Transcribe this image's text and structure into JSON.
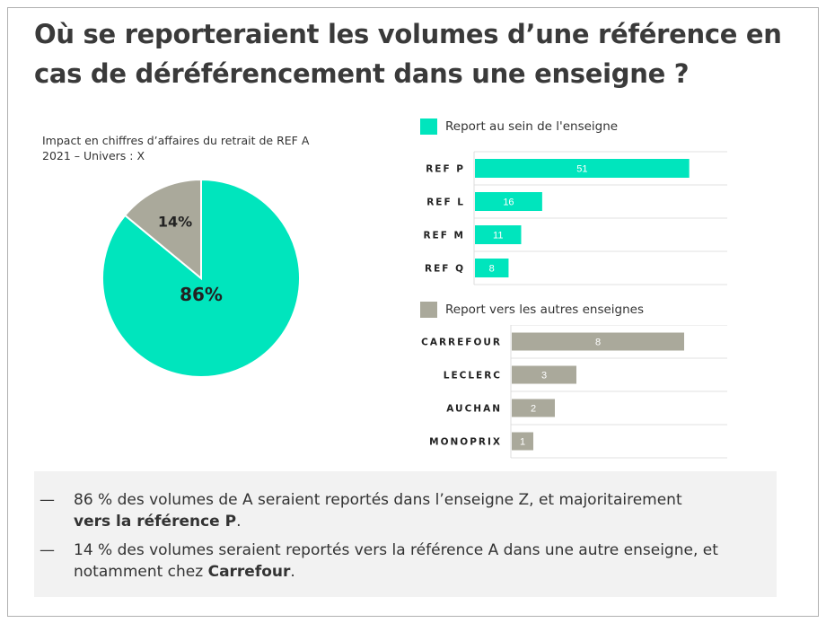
{
  "title": "Où se reporteraient les volumes d’une référence en cas de déréférencement dans une enseigne ?",
  "colors": {
    "teal": "#00e5bd",
    "grey": "#aaa99b"
  },
  "chart_data": [
    {
      "type": "pie",
      "subtitle_line1": "Impact en chiffres d’affaires du retrait de REF A",
      "subtitle_line2": "2021 – Univers : X",
      "slices": [
        {
          "label": "86%",
          "value": 86,
          "color": "#00e5bd"
        },
        {
          "label": "14%",
          "value": 14,
          "color": "#aaa99b"
        }
      ]
    },
    {
      "type": "bar",
      "orientation": "horizontal",
      "legend": "Report au sein de l'enseigne",
      "color": "#00e5bd",
      "categories": [
        "REF P",
        "REF L",
        "REF M",
        "REF Q"
      ],
      "values": [
        51,
        16,
        11,
        8
      ],
      "xlim": [
        0,
        60
      ],
      "grid": true
    },
    {
      "type": "bar",
      "orientation": "horizontal",
      "legend": "Report vers les autres enseignes",
      "color": "#aaa99b",
      "categories": [
        "CARREFOUR",
        "LECLERC",
        "AUCHAN",
        "MONOPRIX"
      ],
      "values": [
        8,
        3,
        2,
        1
      ],
      "xlim": [
        0,
        10
      ],
      "grid": true
    }
  ],
  "bullets": [
    {
      "dash": "—",
      "parts": [
        {
          "t": "86 % des volumes de A seraient reportés dans l’enseigne Z, et majoritairement ",
          "b": false
        },
        {
          "t": "vers la référence P",
          "b": true
        },
        {
          "t": ".",
          "b": false
        }
      ]
    },
    {
      "dash": "—",
      "parts": [
        {
          "t": "14 % des volumes seraient reportés vers la référence A dans une autre enseigne, et notamment chez ",
          "b": false
        },
        {
          "t": "Carrefour",
          "b": true
        },
        {
          "t": ".",
          "b": false
        }
      ]
    }
  ]
}
